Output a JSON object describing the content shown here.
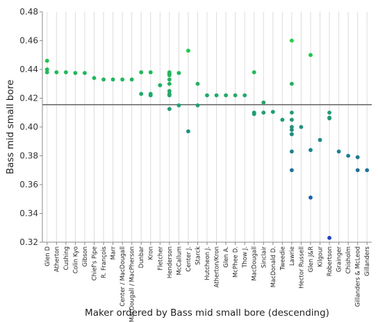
{
  "chart_data": {
    "type": "scatter",
    "xlabel": "Maker ordered by Bass mid small bore (descending)",
    "ylabel": "Bass mid small bore",
    "ylim": [
      0.32,
      0.48
    ],
    "yticks": [
      "0.32",
      "0.34",
      "0.36",
      "0.38",
      "0.40",
      "0.42",
      "0.44",
      "0.46",
      "0.48"
    ],
    "reference_line": 0.4155,
    "grid": "vertical",
    "color_scale": [
      "#1a3fd6",
      "#18d63c"
    ],
    "categories": [
      "Glen D",
      "Atherton",
      "Cushing",
      "Colin Kyo",
      "Gibson",
      "Chief's Pipe",
      "R. François",
      "Marr",
      "Center / MacDougall",
      "MacDougall / MacPherson",
      "Dunbar",
      "Kron",
      "Fletcher",
      "Henderson",
      "McCallum",
      "Center J.",
      "Starck",
      "Hutcheon J.",
      "Atherton/Kron",
      "Glen A.",
      "McPhee D.",
      "Thow J.",
      "MacDougall",
      "Sinclair",
      "MacDonald D.",
      "Tweedie",
      "Lawrie",
      "Hector Russell",
      "Glen J&R",
      "Kilgour",
      "Robertson",
      "Grainger",
      "Chisholm",
      "Gillanders & McLeod",
      "Gillanders"
    ],
    "points": [
      {
        "maker": "Glen D",
        "values": [
          0.446,
          0.44,
          0.438
        ]
      },
      {
        "maker": "Atherton",
        "values": [
          0.438
        ]
      },
      {
        "maker": "Cushing",
        "values": [
          0.438
        ]
      },
      {
        "maker": "Colin Kyo",
        "values": [
          0.4375
        ]
      },
      {
        "maker": "Gibson",
        "values": [
          0.4375
        ]
      },
      {
        "maker": "Chief's Pipe",
        "values": [
          0.434
        ]
      },
      {
        "maker": "R. François",
        "values": [
          0.433
        ]
      },
      {
        "maker": "Marr",
        "values": [
          0.433
        ]
      },
      {
        "maker": "Center / MacDougall",
        "values": [
          0.433
        ]
      },
      {
        "maker": "MacDougall / MacPherson",
        "values": [
          0.433
        ]
      },
      {
        "maker": "Dunbar",
        "values": [
          0.438,
          0.423
        ]
      },
      {
        "maker": "Kron",
        "values": [
          0.438,
          0.423,
          0.422
        ]
      },
      {
        "maker": "Fletcher",
        "values": [
          0.429
        ]
      },
      {
        "maker": "Henderson",
        "values": [
          0.438,
          0.437,
          0.436,
          0.433,
          0.43,
          0.425,
          0.423,
          0.422,
          0.4125
        ]
      },
      {
        "maker": "McCallum",
        "values": [
          0.4375,
          0.415
        ]
      },
      {
        "maker": "Center J.",
        "values": [
          0.453,
          0.397
        ]
      },
      {
        "maker": "Starck",
        "values": [
          0.43,
          0.415
        ]
      },
      {
        "maker": "Hutcheon J.",
        "values": [
          0.422
        ]
      },
      {
        "maker": "Atherton/Kron",
        "values": [
          0.422
        ]
      },
      {
        "maker": "Glen A.",
        "values": [
          0.422
        ]
      },
      {
        "maker": "McPhee D.",
        "values": [
          0.422
        ]
      },
      {
        "maker": "Thow J.",
        "values": [
          0.422
        ]
      },
      {
        "maker": "MacDougall",
        "values": [
          0.438,
          0.41,
          0.409
        ]
      },
      {
        "maker": "Sinclair",
        "values": [
          0.417,
          0.41
        ]
      },
      {
        "maker": "MacDonald D.",
        "values": [
          0.4105
        ]
      },
      {
        "maker": "Tweedie",
        "values": [
          0.405
        ]
      },
      {
        "maker": "Lawrie",
        "values": [
          0.46,
          0.43,
          0.41,
          0.405,
          0.4,
          0.398,
          0.395,
          0.395,
          0.383,
          0.37
        ]
      },
      {
        "maker": "Hector Russell",
        "values": [
          0.4
        ]
      },
      {
        "maker": "Glen J&R",
        "values": [
          0.45,
          0.384,
          0.351
        ]
      },
      {
        "maker": "Kilgour",
        "values": [
          0.391
        ]
      },
      {
        "maker": "Robertson",
        "values": [
          0.41,
          0.4065,
          0.406,
          0.323
        ]
      },
      {
        "maker": "Grainger",
        "values": [
          0.383
        ]
      },
      {
        "maker": "Chisholm",
        "values": [
          0.38
        ]
      },
      {
        "maker": "Gillanders & McLeod",
        "values": [
          0.379,
          0.37
        ]
      },
      {
        "maker": "Gillanders",
        "values": [
          0.37
        ]
      }
    ]
  }
}
